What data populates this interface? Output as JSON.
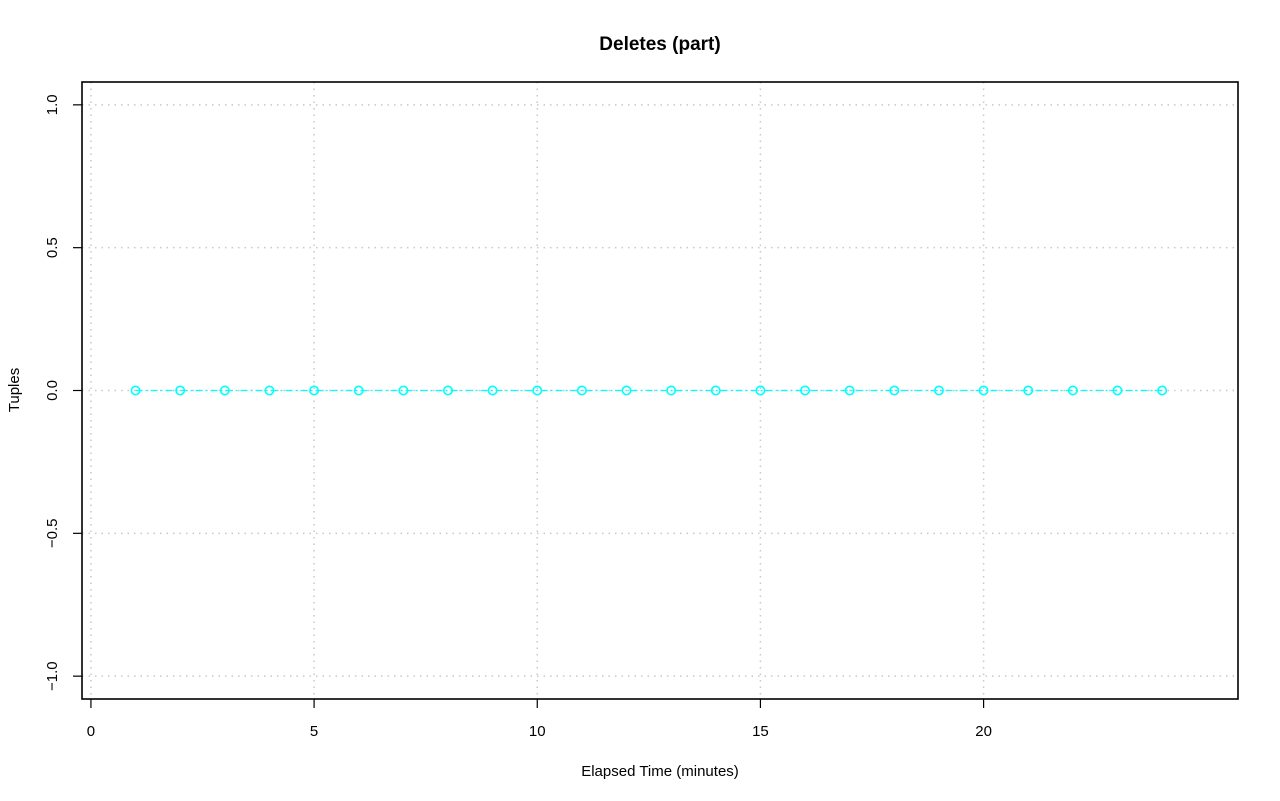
{
  "chart_data": {
    "type": "line",
    "title": "Deletes (part)",
    "xlabel": "Elapsed Time (minutes)",
    "ylabel": "Tuples",
    "xlim": [
      -0.2,
      25.7
    ],
    "ylim": [
      -1.08,
      1.08
    ],
    "x_ticks": [
      0,
      5,
      10,
      15,
      20
    ],
    "x_tick_labels": [
      "0",
      "5",
      "10",
      "15",
      "20"
    ],
    "y_ticks": [
      -1.0,
      -0.5,
      0.0,
      0.5,
      1.0
    ],
    "y_tick_labels": [
      "−1.0",
      "−0.5",
      "0.0",
      "0.5",
      "1.0"
    ],
    "grid": true,
    "legend": false,
    "series": [
      {
        "color": "#00ffff",
        "marker": "open-circle",
        "line_style": "dash-dot",
        "x": [
          1,
          2,
          3,
          4,
          5,
          6,
          7,
          8,
          9,
          10,
          11,
          12,
          13,
          14,
          15,
          16,
          17,
          18,
          19,
          20,
          21,
          22,
          23,
          24
        ],
        "y": [
          0,
          0,
          0,
          0,
          0,
          0,
          0,
          0,
          0,
          0,
          0,
          0,
          0,
          0,
          0,
          0,
          0,
          0,
          0,
          0,
          0,
          0,
          0,
          0
        ]
      }
    ]
  }
}
